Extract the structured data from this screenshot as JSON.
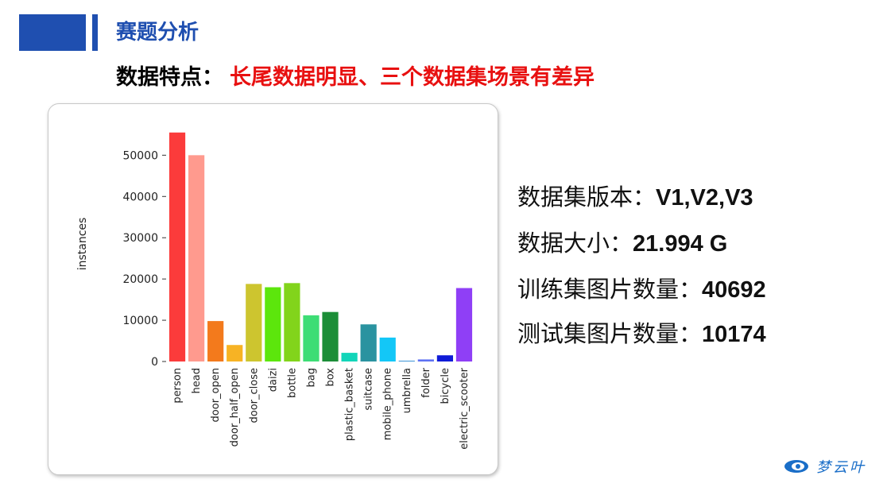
{
  "header": {
    "title": "赛题分析"
  },
  "subtitle": {
    "prefix": "数据特点：",
    "highlight": "长尾数据明显、三个数据集场景有差异"
  },
  "info": [
    {
      "label": "数据集版本：",
      "value": "V1,V2,V3"
    },
    {
      "label": "数据大小：",
      "value": "21.994 G"
    },
    {
      "label": "训练集图片数量：",
      "value": "40692"
    },
    {
      "label": "测试集图片数量：",
      "value": "10174"
    }
  ],
  "logo": {
    "text": "梦云叶",
    "icon": "cloud-eye-icon"
  },
  "chart_data": {
    "type": "bar",
    "ylabel": "instances",
    "xlabel": "",
    "ylim": [
      0,
      57000
    ],
    "yticks": [
      0,
      10000,
      20000,
      30000,
      40000,
      50000
    ],
    "ytick_labels": [
      "0",
      "10000",
      "20000",
      "30000",
      "40000",
      "50000"
    ],
    "categories": [
      "person",
      "head",
      "door_open",
      "door_half_open",
      "door_close",
      "daizi",
      "bottle",
      "bag",
      "box",
      "plastic_basket",
      "suitcase",
      "mobile_phone",
      "umbrella",
      "folder",
      "bicycle",
      "electric_scooter"
    ],
    "values": [
      55500,
      50000,
      9800,
      4000,
      18800,
      18000,
      19000,
      11200,
      12000,
      2100,
      9000,
      5800,
      200,
      500,
      1500,
      17800
    ],
    "colors": [
      "#fb3b3b",
      "#ff9a8e",
      "#f37a1c",
      "#f7b324",
      "#cdc52f",
      "#5ce60c",
      "#82d41b",
      "#3ddd75",
      "#1c8e38",
      "#12d5b9",
      "#2a93a0",
      "#13c7f7",
      "#3f97d7",
      "#5d71f3",
      "#0f1bd7",
      "#8f3ff6"
    ],
    "grid": false,
    "legend": "none"
  }
}
